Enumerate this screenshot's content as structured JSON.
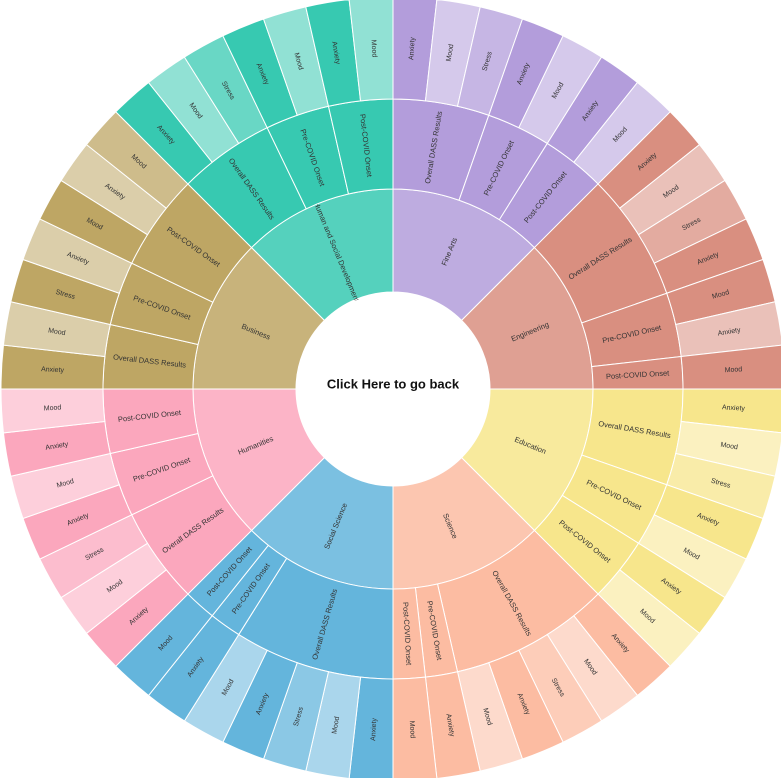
{
  "center": {
    "label": "Click Here to go back"
  },
  "chart_data": {
    "type": "sunburst",
    "root": {
      "name": "",
      "children": [
        {
          "name": "Fine Arts",
          "color": "#b39ddb",
          "children": [
            {
              "name": "Overall DASS Results",
              "children": [
                {
                  "name": "Anxiety",
                  "value": 1
                },
                {
                  "name": "Mood",
                  "value": 1
                },
                {
                  "name": "Stress",
                  "value": 1
                }
              ]
            },
            {
              "name": "Pre-COVID Onset",
              "children": [
                {
                  "name": "Anxiety",
                  "value": 1
                },
                {
                  "name": "Mood",
                  "value": 1
                }
              ]
            },
            {
              "name": "Post-COVID Onset",
              "children": [
                {
                  "name": "Anxiety",
                  "value": 1
                },
                {
                  "name": "Mood",
                  "value": 1
                }
              ]
            }
          ]
        },
        {
          "name": "Engineering",
          "color": "#d98f80",
          "children": [
            {
              "name": "Overall DASS Results",
              "children": [
                {
                  "name": "Anxiety",
                  "value": 1
                },
                {
                  "name": "Mood",
                  "value": 1
                },
                {
                  "name": "Stress",
                  "value": 1
                },
                {
                  "name": "Anxiety",
                  "value": 1
                }
              ]
            },
            {
              "name": "Pre-COVID Onset",
              "children": [
                {
                  "name": "Mood",
                  "value": 1
                },
                {
                  "name": "Anxiety",
                  "value": 1
                }
              ]
            },
            {
              "name": "Post-COVID Onset",
              "children": [
                {
                  "name": "Mood",
                  "value": 1
                }
              ]
            }
          ]
        },
        {
          "name": "Education",
          "color": "#f7e68c",
          "children": [
            {
              "name": "Overall DASS Results",
              "children": [
                {
                  "name": "Anxiety",
                  "value": 1
                },
                {
                  "name": "Mood",
                  "value": 1
                },
                {
                  "name": "Stress",
                  "value": 1
                }
              ]
            },
            {
              "name": "Pre-COVID Onset",
              "children": [
                {
                  "name": "Anxiety",
                  "value": 1
                },
                {
                  "name": "Mood",
                  "value": 1
                }
              ]
            },
            {
              "name": "Post-COVID Onset",
              "children": [
                {
                  "name": "Anxiety",
                  "value": 1
                },
                {
                  "name": "Mood",
                  "value": 1
                }
              ]
            }
          ]
        },
        {
          "name": "Science",
          "color": "#fcbca2",
          "children": [
            {
              "name": "Overall DASS Results",
              "children": [
                {
                  "name": "Anxiety",
                  "value": 1
                },
                {
                  "name": "Mood",
                  "value": 1
                },
                {
                  "name": "Stress",
                  "value": 1
                },
                {
                  "name": "Anxiety",
                  "value": 1
                },
                {
                  "name": "Mood",
                  "value": 1
                }
              ]
            },
            {
              "name": "Pre-COVID Onset",
              "children": [
                {
                  "name": "Anxiety",
                  "value": 1
                }
              ]
            },
            {
              "name": "Post-COVID Onset",
              "children": [
                {
                  "name": "Mood",
                  "value": 1
                }
              ]
            }
          ]
        },
        {
          "name": "Social Science",
          "color": "#64b5dc",
          "children": [
            {
              "name": "Overall DASS Results",
              "children": [
                {
                  "name": "Anxiety",
                  "value": 1
                },
                {
                  "name": "Mood",
                  "value": 1
                },
                {
                  "name": "Stress",
                  "value": 1
                },
                {
                  "name": "Anxiety",
                  "value": 1
                },
                {
                  "name": "Mood",
                  "value": 1
                }
              ]
            },
            {
              "name": "Pre-COVID Onset",
              "children": [
                {
                  "name": "Anxiety",
                  "value": 1
                }
              ]
            },
            {
              "name": "Post-COVID Onset",
              "children": [
                {
                  "name": "Mood",
                  "value": 1
                }
              ]
            }
          ]
        },
        {
          "name": "Humanities",
          "color": "#fba7bd",
          "children": [
            {
              "name": "Overall DASS Results",
              "children": [
                {
                  "name": "Anxiety",
                  "value": 1
                },
                {
                  "name": "Mood",
                  "value": 1
                },
                {
                  "name": "Stress",
                  "value": 1
                }
              ]
            },
            {
              "name": "Pre-COVID Onset",
              "children": [
                {
                  "name": "Anxiety",
                  "value": 1
                },
                {
                  "name": "Mood",
                  "value": 1
                }
              ]
            },
            {
              "name": "Post-COVID Onset",
              "children": [
                {
                  "name": "Anxiety",
                  "value": 1
                },
                {
                  "name": "Mood",
                  "value": 1
                }
              ]
            }
          ]
        },
        {
          "name": "Business",
          "color": "#bea664",
          "children": [
            {
              "name": "Overall DASS Results",
              "children": [
                {
                  "name": "Anxiety",
                  "value": 1
                },
                {
                  "name": "Mood",
                  "value": 1
                }
              ]
            },
            {
              "name": "Pre-COVID Onset",
              "children": [
                {
                  "name": "Stress",
                  "value": 1
                },
                {
                  "name": "Anxiety",
                  "value": 1
                }
              ]
            },
            {
              "name": "Post-COVID Onset",
              "children": [
                {
                  "name": "Mood",
                  "value": 1
                },
                {
                  "name": "Anxiety",
                  "value": 1
                },
                {
                  "name": "Mood",
                  "value": 1
                }
              ]
            }
          ]
        },
        {
          "name": "Human and Social Development",
          "color": "#37c9b1",
          "children": [
            {
              "name": "Overall DASS Results",
              "children": [
                {
                  "name": "Anxiety",
                  "value": 1
                },
                {
                  "name": "Mood",
                  "value": 1
                },
                {
                  "name": "Stress",
                  "value": 1
                }
              ]
            },
            {
              "name": "Pre-COVID Onset",
              "children": [
                {
                  "name": "Anxiety",
                  "value": 1
                },
                {
                  "name": "Mood",
                  "value": 1
                }
              ]
            },
            {
              "name": "Post-COVID Onset",
              "children": [
                {
                  "name": "Anxiety",
                  "value": 1
                },
                {
                  "name": "Mood",
                  "value": 1
                }
              ]
            }
          ]
        }
      ]
    }
  }
}
